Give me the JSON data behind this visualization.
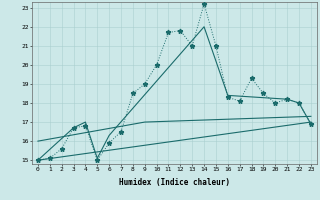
{
  "xlabel": "Humidex (Indice chaleur)",
  "xlim": [
    -0.5,
    23.5
  ],
  "ylim": [
    14.8,
    23.3
  ],
  "yticks": [
    15,
    16,
    17,
    18,
    19,
    20,
    21,
    22,
    23
  ],
  "xticks": [
    0,
    1,
    2,
    3,
    4,
    5,
    6,
    7,
    8,
    9,
    10,
    11,
    12,
    13,
    14,
    15,
    16,
    17,
    18,
    19,
    20,
    21,
    22,
    23
  ],
  "bg_color": "#cce8e8",
  "grid_color": "#aacfcf",
  "line_color": "#1a6b6b",
  "line1_x": [
    0,
    1,
    2,
    3,
    4,
    5,
    6,
    7,
    8,
    9,
    10,
    11,
    12,
    13,
    14,
    15,
    16,
    17,
    18,
    19,
    20,
    21,
    22,
    23
  ],
  "line1_y": [
    15.0,
    15.1,
    15.6,
    16.7,
    16.8,
    15.0,
    15.9,
    16.5,
    18.5,
    19.0,
    20.0,
    21.7,
    21.8,
    21.0,
    23.2,
    21.0,
    18.3,
    18.1,
    19.3,
    18.5,
    18.0,
    18.2,
    18.0,
    16.9
  ],
  "line2_x": [
    0,
    3,
    4,
    5,
    6,
    14,
    16,
    21,
    22,
    23
  ],
  "line2_y": [
    15.0,
    16.7,
    17.0,
    15.1,
    16.3,
    22.0,
    18.4,
    18.2,
    18.0,
    16.9
  ],
  "line3_x": [
    0,
    23
  ],
  "line3_y": [
    15.0,
    17.0
  ],
  "line4_x": [
    0,
    9,
    23
  ],
  "line4_y": [
    16.0,
    17.0,
    17.3
  ]
}
